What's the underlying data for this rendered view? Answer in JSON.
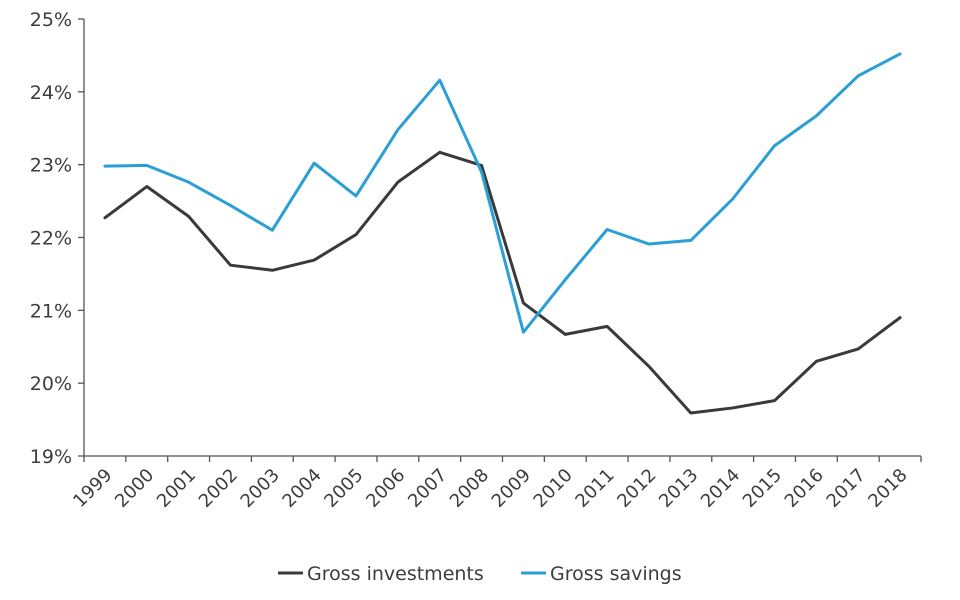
{
  "chart_data": {
    "type": "line",
    "title": "",
    "xlabel": "",
    "ylabel": "",
    "categories": [
      "1999",
      "2000",
      "2001",
      "2002",
      "2003",
      "2004",
      "2005",
      "2006",
      "2007",
      "2008",
      "2009",
      "2010",
      "2011",
      "2012",
      "2013",
      "2014",
      "2015",
      "2016",
      "2017",
      "2018"
    ],
    "x_positions": [
      1999.25,
      1999.75,
      2000.25,
      2000.75,
      2001.25,
      2001.75,
      2002.25,
      2002.75,
      2003.25,
      2003.75,
      2004.25,
      2004.75,
      2005.25,
      2005.75,
      2006.25,
      2006.75,
      2007.25,
      2007.75,
      2008.25,
      2008.75,
      2009.25,
      2009.75,
      2010.25,
      2010.75,
      2011.25,
      2011.75,
      2012.25,
      2012.75,
      2013.25,
      2013.75,
      2014.25,
      2014.75,
      2015.25,
      2015.75,
      2016.25,
      2016.75,
      2017.25,
      2017.75,
      2018.25,
      2018.75
    ],
    "ylim": [
      19,
      25
    ],
    "yticks": [
      19,
      20,
      21,
      22,
      23,
      24,
      25
    ],
    "ytick_labels": [
      "19%",
      "20%",
      "21%",
      "22%",
      "23%",
      "24%",
      "25%"
    ],
    "legend_position": "bottom-center",
    "grid": false,
    "series": [
      {
        "name": "Gross investments",
        "color": "#3a3a3a",
        "x": [
          1999,
          2000,
          2001,
          2002,
          2003,
          2004,
          2005,
          2006,
          2007,
          2008,
          2009,
          2010,
          2011,
          2012,
          2013,
          2014,
          2015,
          2016,
          2017,
          2018
        ],
        "values": [
          22.27,
          22.7,
          22.29,
          21.62,
          21.55,
          21.69,
          22.04,
          22.76,
          23.17,
          22.99,
          21.1,
          20.67,
          20.78,
          20.23,
          19.59,
          19.66,
          19.76,
          20.3,
          20.47,
          20.9
        ]
      },
      {
        "name": "Gross savings",
        "color": "#2a9fd6",
        "x": [
          1999,
          2000,
          2001,
          2002,
          2003,
          2004,
          2005,
          2006,
          2007,
          2008,
          2009,
          2010,
          2011,
          2012,
          2013,
          2014,
          2015,
          2016,
          2017,
          2018
        ],
        "values": [
          22.98,
          22.99,
          22.76,
          22.44,
          22.1,
          23.02,
          22.57,
          23.48,
          24.16,
          22.9,
          20.7,
          21.42,
          22.11,
          21.91,
          21.96,
          22.53,
          23.26,
          23.67,
          24.22,
          24.52
        ]
      }
    ]
  }
}
